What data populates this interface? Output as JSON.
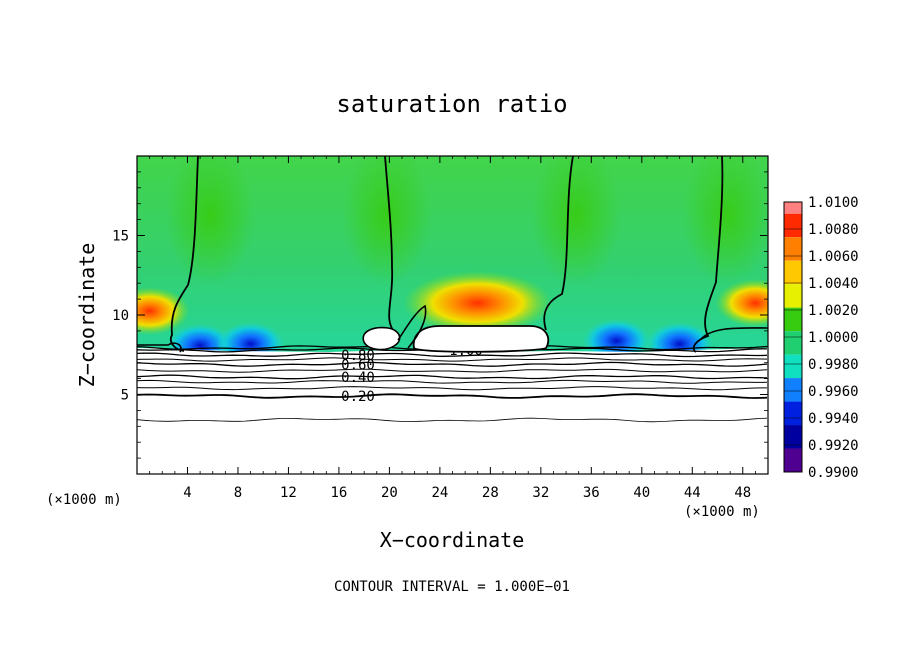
{
  "chart_data": {
    "type": "heatmap",
    "title": "saturation ratio",
    "xlabel": "X−coordinate",
    "ylabel": "Z−coordinate",
    "x_unit_left": "(×1000 m)",
    "x_unit_right": "(×1000 m)",
    "footer": "CONTOUR INTERVAL = 1.000E−01",
    "xlim": [
      0,
      50
    ],
    "ylim": [
      0,
      20
    ],
    "x_ticks": [
      4,
      8,
      12,
      16,
      20,
      24,
      28,
      32,
      36,
      40,
      44,
      48
    ],
    "x_tick_labels": [
      "4",
      "8",
      "12",
      "16",
      "20",
      "24",
      "28",
      "32",
      "36",
      "40",
      "44",
      "48"
    ],
    "y_ticks": [
      5,
      10,
      15
    ],
    "y_tick_labels": [
      "5",
      "10",
      "15"
    ],
    "colorbar": {
      "range": [
        0.99,
        1.01
      ],
      "labels": [
        "1.0100",
        "1.0080",
        "1.0060",
        "1.0040",
        "1.0020",
        "1.0000",
        "0.9980",
        "0.9960",
        "0.9940",
        "0.9920",
        "0.9900"
      ],
      "colors": [
        "#ff8080",
        "#ff2a00",
        "#ff8000",
        "#ffc800",
        "#e6f000",
        "#38cc10",
        "#20d070",
        "#10e0c0",
        "#1080ff",
        "#0020e0",
        "#0000a0",
        "#500090"
      ]
    },
    "contour_lines": [
      {
        "label": "0.20",
        "z": 4.9
      },
      {
        "label": "0.40",
        "z": 6.1
      },
      {
        "label": "0.60",
        "z": 6.9
      },
      {
        "label": "0.80",
        "z": 7.5
      },
      {
        "label": "1.00",
        "z": 7.8
      },
      {
        "label": "1.20",
        "z": 7.95
      }
    ],
    "plume_columns_x": [
      5,
      19,
      34,
      46
    ],
    "warm_spots": [
      {
        "x": 27,
        "z": 10.5,
        "value": 1.006
      },
      {
        "x": 1,
        "z": 10,
        "value": 1.006
      },
      {
        "x": 49,
        "z": 10.5,
        "value": 1.006
      }
    ],
    "cold_spots": [
      {
        "x": 5,
        "z": 8.2,
        "value": 0.992
      },
      {
        "x": 9,
        "z": 8.3,
        "value": 0.993
      },
      {
        "x": 38,
        "z": 8.5,
        "value": 0.994
      },
      {
        "x": 43,
        "z": 8.3,
        "value": 0.993
      }
    ]
  }
}
